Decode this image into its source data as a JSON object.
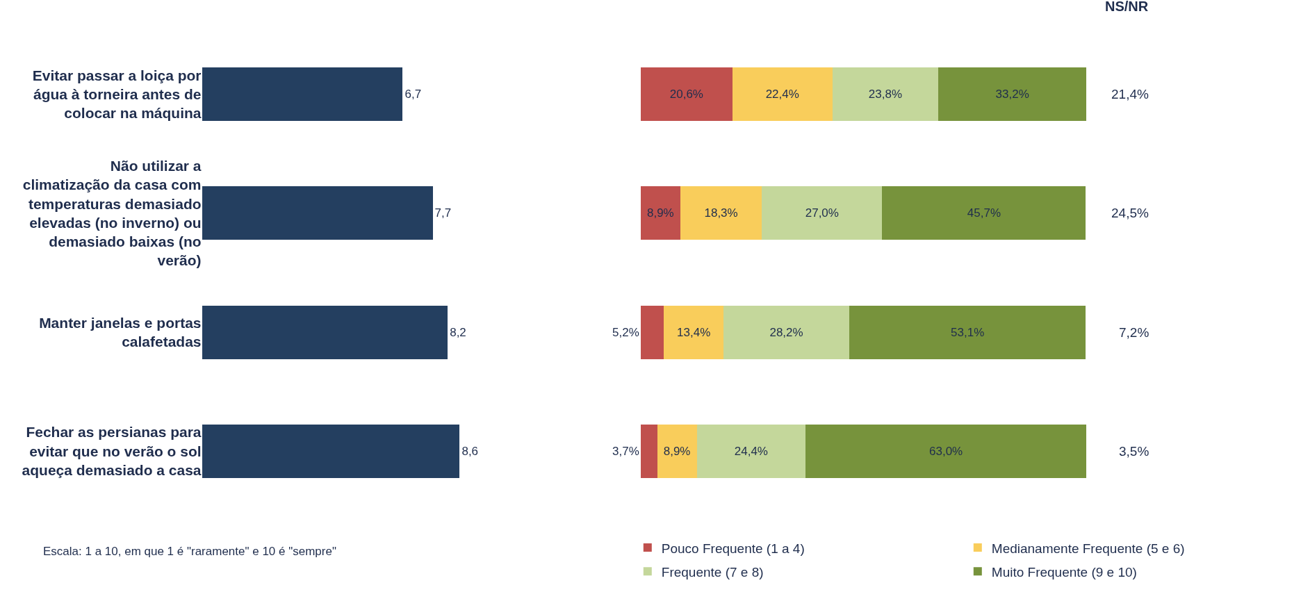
{
  "chart_data": [
    {
      "type": "bar",
      "orientation": "horizontal",
      "tick_labels": "y",
      "categories": [
        "Evitar passar a loiça por água à torneira antes de colocar na máquina",
        "Não utilizar a climatização da casa com temperaturas demasiado elevadas (no inverno) ou demasiado baixas (no verão)",
        "Manter janelas e portas calafetadas",
        "Fechar as persianas para evitar que no verão o sol aqueça demasiado a casa"
      ],
      "values": [
        6.7,
        7.7,
        8.2,
        8.6
      ],
      "color": "#243f60",
      "value_labels": [
        "6,7",
        "7,7",
        "8,2",
        "8,6"
      ],
      "annotations": [
        "Escala: 1 a 10, em que 1 é \"raramente\" e 10 é \"sempre\""
      ]
    },
    {
      "type": "bar",
      "orientation": "horizontal",
      "stacked": true,
      "tick_labels": false,
      "legend": "bottom",
      "categories": [
        "Evitar passar a loiça por água à torneira antes de colocar na máquina",
        "Não utilizar a climatização da casa com temperaturas demasiado elevadas (no inverno) ou demasiado baixas (no verão)",
        "Manter janelas e portas calafetadas",
        "Fechar as persianas para evitar que no verão o sol aqueça demasiado a casa"
      ],
      "series": [
        {
          "name": "Pouco Frequente (1 a 4)",
          "color": "#c0504d",
          "values": [
            20.6,
            8.9,
            5.2,
            3.7
          ],
          "value_labels": [
            "20,6%",
            "8,9%",
            "5,2%",
            "3,7%"
          ]
        },
        {
          "name": "Medianamente Frequente (5 e 6)",
          "color": "#f9cd5b",
          "values": [
            22.4,
            18.3,
            13.4,
            8.9
          ],
          "value_labels": [
            "22,4%",
            "18,3%",
            "13,4%",
            "8,9%"
          ]
        },
        {
          "name": "Frequente (7 e 8)",
          "color": "#c4d79b",
          "values": [
            23.8,
            27.0,
            28.2,
            24.4
          ],
          "value_labels": [
            "23,8%",
            "27,0%",
            "28,2%",
            "24,4%"
          ]
        },
        {
          "name": "Muito Frequente (9 e 10)",
          "color": "#77933c",
          "values": [
            33.2,
            45.7,
            53.1,
            63.0
          ],
          "value_labels": [
            "33,2%",
            "45,7%",
            "53,1%",
            "63,0%"
          ]
        }
      ],
      "annotations": [
        "NS/NR",
        "21,4%",
        "24,5%",
        "7,2%",
        "3,5%"
      ]
    }
  ]
}
